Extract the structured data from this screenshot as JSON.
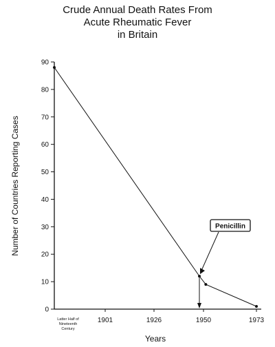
{
  "chart_data": {
    "type": "line",
    "title_lines": [
      "Crude Annual Death Rates From",
      "Acute Rheumatic Fever",
      "in Britain"
    ],
    "xlabel": "Years",
    "ylabel": "Number of Countries Reporting Cases",
    "ylim": [
      0,
      90
    ],
    "yticks": [
      0,
      10,
      20,
      30,
      40,
      50,
      60,
      70,
      80,
      90
    ],
    "x_tick_labels": [
      {
        "label_lines": [
          "Latter Half of",
          "Nineteenth",
          "Century"
        ],
        "value": 1870
      },
      {
        "label_lines": [
          "1901"
        ],
        "value": 1901
      },
      {
        "label_lines": [
          "1926"
        ],
        "value": 1926
      },
      {
        "label_lines": [
          "1950"
        ],
        "value": 1950
      },
      {
        "label_lines": [
          "1973"
        ],
        "value": 1973
      }
    ],
    "series": [
      {
        "x": [
          1870,
          1948,
          1951,
          1973
        ],
        "y": [
          88,
          12,
          9,
          1
        ]
      }
    ],
    "annotations": [
      {
        "text": "Penicillin",
        "x": 1948,
        "y": 12
      }
    ],
    "grid": false
  }
}
